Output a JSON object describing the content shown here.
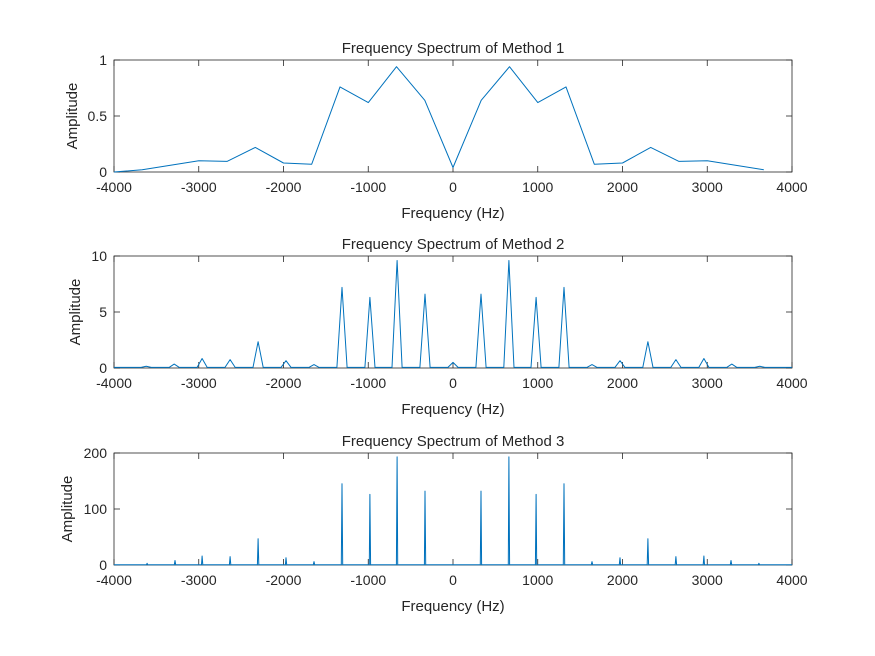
{
  "chart_data": [
    {
      "type": "line",
      "title": "Frequency Spectrum of Method 1",
      "xlabel": "Frequency (Hz)",
      "ylabel": "Amplitude",
      "xlim": [
        -4000,
        4000
      ],
      "ylim": [
        0,
        1
      ],
      "xticks": [
        -4000,
        -3000,
        -2000,
        -1000,
        0,
        1000,
        2000,
        3000,
        4000
      ],
      "yticks": [
        0,
        0.5,
        1
      ],
      "color": "#0072BD",
      "series": [
        {
          "x": [
            -4000,
            -3667,
            -3333,
            -3000,
            -2667,
            -2333,
            -2000,
            -1667,
            -1333,
            -1000,
            -667,
            -333,
            0,
            333,
            667,
            1000,
            1333,
            1667,
            2000,
            2333,
            2667,
            3000,
            3333,
            3667
          ],
          "y": [
            0.0,
            0.02,
            0.06,
            0.1,
            0.095,
            0.22,
            0.08,
            0.07,
            0.76,
            0.62,
            0.94,
            0.64,
            0.04,
            0.64,
            0.94,
            0.62,
            0.76,
            0.07,
            0.08,
            0.22,
            0.095,
            0.1,
            0.06,
            0.02
          ]
        }
      ]
    },
    {
      "type": "line",
      "title": "Frequency Spectrum of Method 2",
      "xlabel": "Frequency (Hz)",
      "ylabel": "Amplitude",
      "xlim": [
        -4000,
        4000
      ],
      "ylim": [
        0,
        10
      ],
      "xticks": [
        -4000,
        -3000,
        -2000,
        -1000,
        0,
        1000,
        2000,
        3000,
        4000
      ],
      "yticks": [
        0,
        5,
        10
      ],
      "color": "#0072BD",
      "peak_width": 60,
      "baseline": 0.05,
      "series": [
        {
          "peaks": [
            [
              -3620,
              0.15
            ],
            [
              -3290,
              0.35
            ],
            [
              -2960,
              0.85
            ],
            [
              -2630,
              0.75
            ],
            [
              -2300,
              2.35
            ],
            [
              -1970,
              0.65
            ],
            [
              -1640,
              0.3
            ],
            [
              -1310,
              7.2
            ],
            [
              -980,
              6.3
            ],
            [
              -660,
              9.6
            ],
            [
              -330,
              6.6
            ],
            [
              0,
              0.5
            ],
            [
              330,
              6.6
            ],
            [
              660,
              9.6
            ],
            [
              980,
              6.3
            ],
            [
              1310,
              7.2
            ],
            [
              1640,
              0.3
            ],
            [
              1970,
              0.65
            ],
            [
              2300,
              2.35
            ],
            [
              2630,
              0.75
            ],
            [
              2960,
              0.85
            ],
            [
              3290,
              0.35
            ],
            [
              3620,
              0.15
            ]
          ]
        }
      ]
    },
    {
      "type": "line",
      "title": "Frequency Spectrum of Method 3",
      "xlabel": "Frequency (Hz)",
      "ylabel": "Amplitude",
      "xlim": [
        -4000,
        4000
      ],
      "ylim": [
        0,
        200
      ],
      "xticks": [
        -4000,
        -3000,
        -2000,
        -1000,
        0,
        1000,
        2000,
        3000,
        4000
      ],
      "yticks": [
        0,
        100,
        200
      ],
      "color": "#0072BD",
      "peak_width": 8,
      "baseline": 0.5,
      "series": [
        {
          "peaks": [
            [
              -3610,
              3
            ],
            [
              -3280,
              8
            ],
            [
              -2960,
              16
            ],
            [
              -2630,
              15
            ],
            [
              -2300,
              47
            ],
            [
              -1970,
              13
            ],
            [
              -1640,
              6
            ],
            [
              -1310,
              145
            ],
            [
              -980,
              126
            ],
            [
              -660,
              193
            ],
            [
              -330,
              132
            ],
            [
              330,
              132
            ],
            [
              660,
              193
            ],
            [
              980,
              126
            ],
            [
              1310,
              145
            ],
            [
              1640,
              6
            ],
            [
              1970,
              13
            ],
            [
              2300,
              47
            ],
            [
              2630,
              15
            ],
            [
              2960,
              16
            ],
            [
              3280,
              8
            ],
            [
              3610,
              3
            ]
          ]
        }
      ]
    }
  ]
}
